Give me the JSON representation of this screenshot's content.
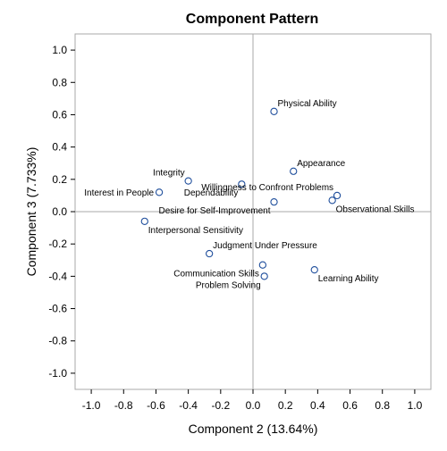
{
  "chart_data": {
    "type": "scatter",
    "title": "Component Pattern",
    "xlabel": "Component 2 (13.64%)",
    "ylabel": "Component 3 (7.733%)",
    "xlim": [
      -1.1,
      1.1
    ],
    "ylim": [
      -1.1,
      1.1
    ],
    "x_ticks": [
      -1.0,
      -0.8,
      -0.6,
      -0.4,
      -0.2,
      0.0,
      0.2,
      0.4,
      0.6,
      0.8,
      1.0
    ],
    "y_ticks": [
      -1.0,
      -0.8,
      -0.6,
      -0.4,
      -0.2,
      0.0,
      0.2,
      0.4,
      0.6,
      0.8,
      1.0
    ],
    "tick_labels": [
      "-1.0",
      "-0.8",
      "-0.6",
      "-0.4",
      "-0.2",
      "0.0",
      "0.2",
      "0.4",
      "0.6",
      "0.8",
      "1.0"
    ],
    "reference_lines": {
      "x": 0,
      "y": 0
    },
    "grid": false,
    "marker_color": "#1f4e9c",
    "points": [
      {
        "label": "Physical Ability",
        "x": 0.13,
        "y": 0.62,
        "label_side": "above-right"
      },
      {
        "label": "Appearance",
        "x": 0.25,
        "y": 0.25,
        "label_side": "above-right"
      },
      {
        "label": "Integrity",
        "x": -0.4,
        "y": 0.19,
        "label_side": "above-left"
      },
      {
        "label": "Interest in People",
        "x": -0.58,
        "y": 0.12,
        "label_side": "left"
      },
      {
        "label": "Dependability",
        "x": -0.07,
        "y": 0.17,
        "label_side": "below-left"
      },
      {
        "label": "Willingness to Confront Problems",
        "x": 0.52,
        "y": 0.1,
        "label_side": "above-left"
      },
      {
        "label": "Observational Skills",
        "x": 0.49,
        "y": 0.07,
        "label_side": "below-right"
      },
      {
        "label": "Desire for Self-Improvement",
        "x": 0.13,
        "y": 0.06,
        "label_side": "below-left"
      },
      {
        "label": "Interpersonal Sensitivity",
        "x": -0.67,
        "y": -0.06,
        "label_side": "below-right"
      },
      {
        "label": "Judgment Under Pressure",
        "x": -0.27,
        "y": -0.26,
        "label_side": "above-right"
      },
      {
        "label": "Communication Skills",
        "x": 0.06,
        "y": -0.33,
        "label_side": "below-left"
      },
      {
        "label": "Problem Solving",
        "x": 0.07,
        "y": -0.4,
        "label_side": "below-left"
      },
      {
        "label": "Learning Ability",
        "x": 0.38,
        "y": -0.36,
        "label_side": "below-right"
      }
    ]
  }
}
